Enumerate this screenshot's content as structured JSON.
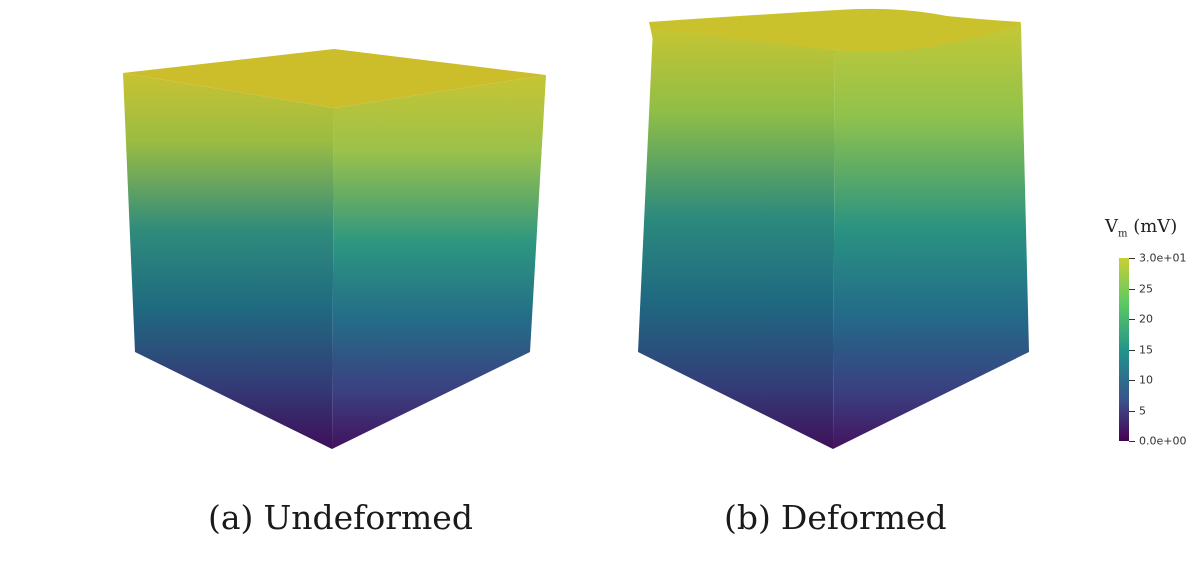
{
  "panels": [
    {
      "tag": "(a)",
      "label": "Undeformed"
    },
    {
      "tag": "(b)",
      "label": "Deformed"
    }
  ],
  "colorbar": {
    "title_symbol": "V",
    "title_subscript": "m",
    "title_unit": "(mV)",
    "colormap": "viridis",
    "min": 0,
    "max": 30,
    "tick_labels": [
      "3.0e+01",
      "25",
      "20",
      "15",
      "10",
      "5",
      "0.0e+00"
    ]
  },
  "colors": {
    "low": "#440154",
    "mid": "#21918c",
    "high": "#c8cf34"
  }
}
